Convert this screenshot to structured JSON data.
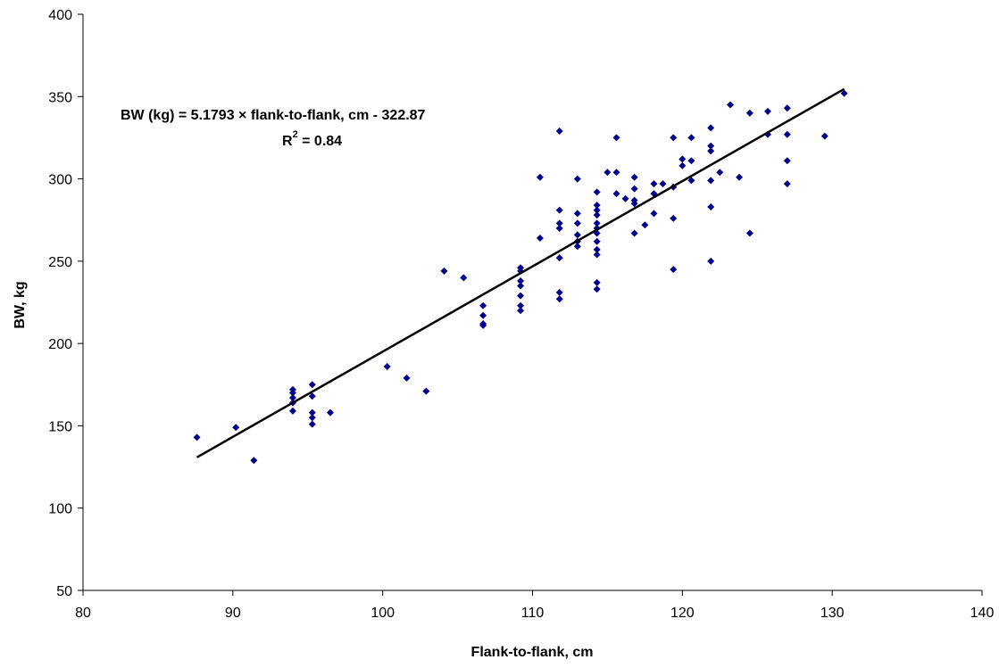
{
  "chart_data": {
    "type": "scatter",
    "xlabel": "Flank-to-flank, cm",
    "ylabel": "BW, kg",
    "xlim": [
      80,
      140
    ],
    "ylim": [
      50,
      400
    ],
    "x_ticks": [
      80,
      90,
      100,
      110,
      120,
      130,
      140
    ],
    "y_ticks": [
      50,
      100,
      150,
      200,
      250,
      300,
      350,
      400
    ],
    "grid": false,
    "legend": "none",
    "marker": "diamond",
    "marker_color": "#00008b",
    "trendline_color": "#000000",
    "annotation": {
      "equation": "BW (kg) = 5.1793 × flank-to-flank, cm - 322.87",
      "r2_prefix": "R",
      "r2_exp": "2",
      "r2_value": " = 0.84"
    },
    "trendline": {
      "slope": 5.1793,
      "intercept": -322.87,
      "x_range": [
        87.6,
        130.8
      ]
    },
    "points": [
      [
        87.6,
        143
      ],
      [
        90.2,
        149
      ],
      [
        91.4,
        129
      ],
      [
        94,
        172
      ],
      [
        94,
        170
      ],
      [
        94,
        167
      ],
      [
        94,
        164
      ],
      [
        94,
        159
      ],
      [
        95.3,
        175
      ],
      [
        95.3,
        168
      ],
      [
        95.3,
        158
      ],
      [
        95.3,
        155
      ],
      [
        95.3,
        151
      ],
      [
        96.5,
        158
      ],
      [
        100.3,
        186
      ],
      [
        101.6,
        179
      ],
      [
        102.9,
        171
      ],
      [
        104.1,
        244
      ],
      [
        105.4,
        240
      ],
      [
        106.7,
        223
      ],
      [
        106.7,
        217
      ],
      [
        106.7,
        212
      ],
      [
        106.7,
        211
      ],
      [
        109.2,
        246
      ],
      [
        109.2,
        244
      ],
      [
        109.2,
        238
      ],
      [
        109.2,
        235
      ],
      [
        109.2,
        229
      ],
      [
        109.2,
        223
      ],
      [
        109.2,
        220
      ],
      [
        110.5,
        301
      ],
      [
        110.5,
        264
      ],
      [
        111.8,
        329
      ],
      [
        111.8,
        281
      ],
      [
        111.8,
        273
      ],
      [
        111.8,
        270
      ],
      [
        111.8,
        252
      ],
      [
        111.8,
        231
      ],
      [
        111.8,
        227
      ],
      [
        113,
        300
      ],
      [
        113,
        279
      ],
      [
        113,
        273
      ],
      [
        113,
        266
      ],
      [
        113,
        262
      ],
      [
        113,
        259
      ],
      [
        114.3,
        292
      ],
      [
        114.3,
        284
      ],
      [
        114.3,
        281
      ],
      [
        114.3,
        278
      ],
      [
        114.3,
        273
      ],
      [
        114.3,
        270
      ],
      [
        114.3,
        267
      ],
      [
        114.3,
        262
      ],
      [
        114.3,
        257
      ],
      [
        114.3,
        254
      ],
      [
        114.3,
        237
      ],
      [
        114.3,
        233
      ],
      [
        115,
        304
      ],
      [
        115.6,
        325
      ],
      [
        115.6,
        304
      ],
      [
        115.6,
        291
      ],
      [
        116.2,
        288
      ],
      [
        116.8,
        301
      ],
      [
        116.8,
        294
      ],
      [
        116.8,
        287
      ],
      [
        116.8,
        285
      ],
      [
        116.8,
        267
      ],
      [
        117.5,
        272
      ],
      [
        118.1,
        297
      ],
      [
        118.1,
        291
      ],
      [
        118.1,
        279
      ],
      [
        118.7,
        297
      ],
      [
        119.4,
        325
      ],
      [
        119.4,
        295
      ],
      [
        119.4,
        276
      ],
      [
        119.4,
        245
      ],
      [
        120,
        312
      ],
      [
        120,
        308
      ],
      [
        120.6,
        325
      ],
      [
        120.6,
        311
      ],
      [
        120.6,
        299
      ],
      [
        121.9,
        331
      ],
      [
        121.9,
        320
      ],
      [
        121.9,
        317
      ],
      [
        121.9,
        299
      ],
      [
        121.9,
        283
      ],
      [
        121.9,
        250
      ],
      [
        122.5,
        304
      ],
      [
        123.2,
        345
      ],
      [
        123.8,
        301
      ],
      [
        124.5,
        340
      ],
      [
        124.5,
        267
      ],
      [
        125.7,
        341
      ],
      [
        125.7,
        327
      ],
      [
        127,
        343
      ],
      [
        127,
        327
      ],
      [
        127,
        311
      ],
      [
        127,
        297
      ],
      [
        129.5,
        326
      ],
      [
        130.8,
        352
      ]
    ]
  }
}
